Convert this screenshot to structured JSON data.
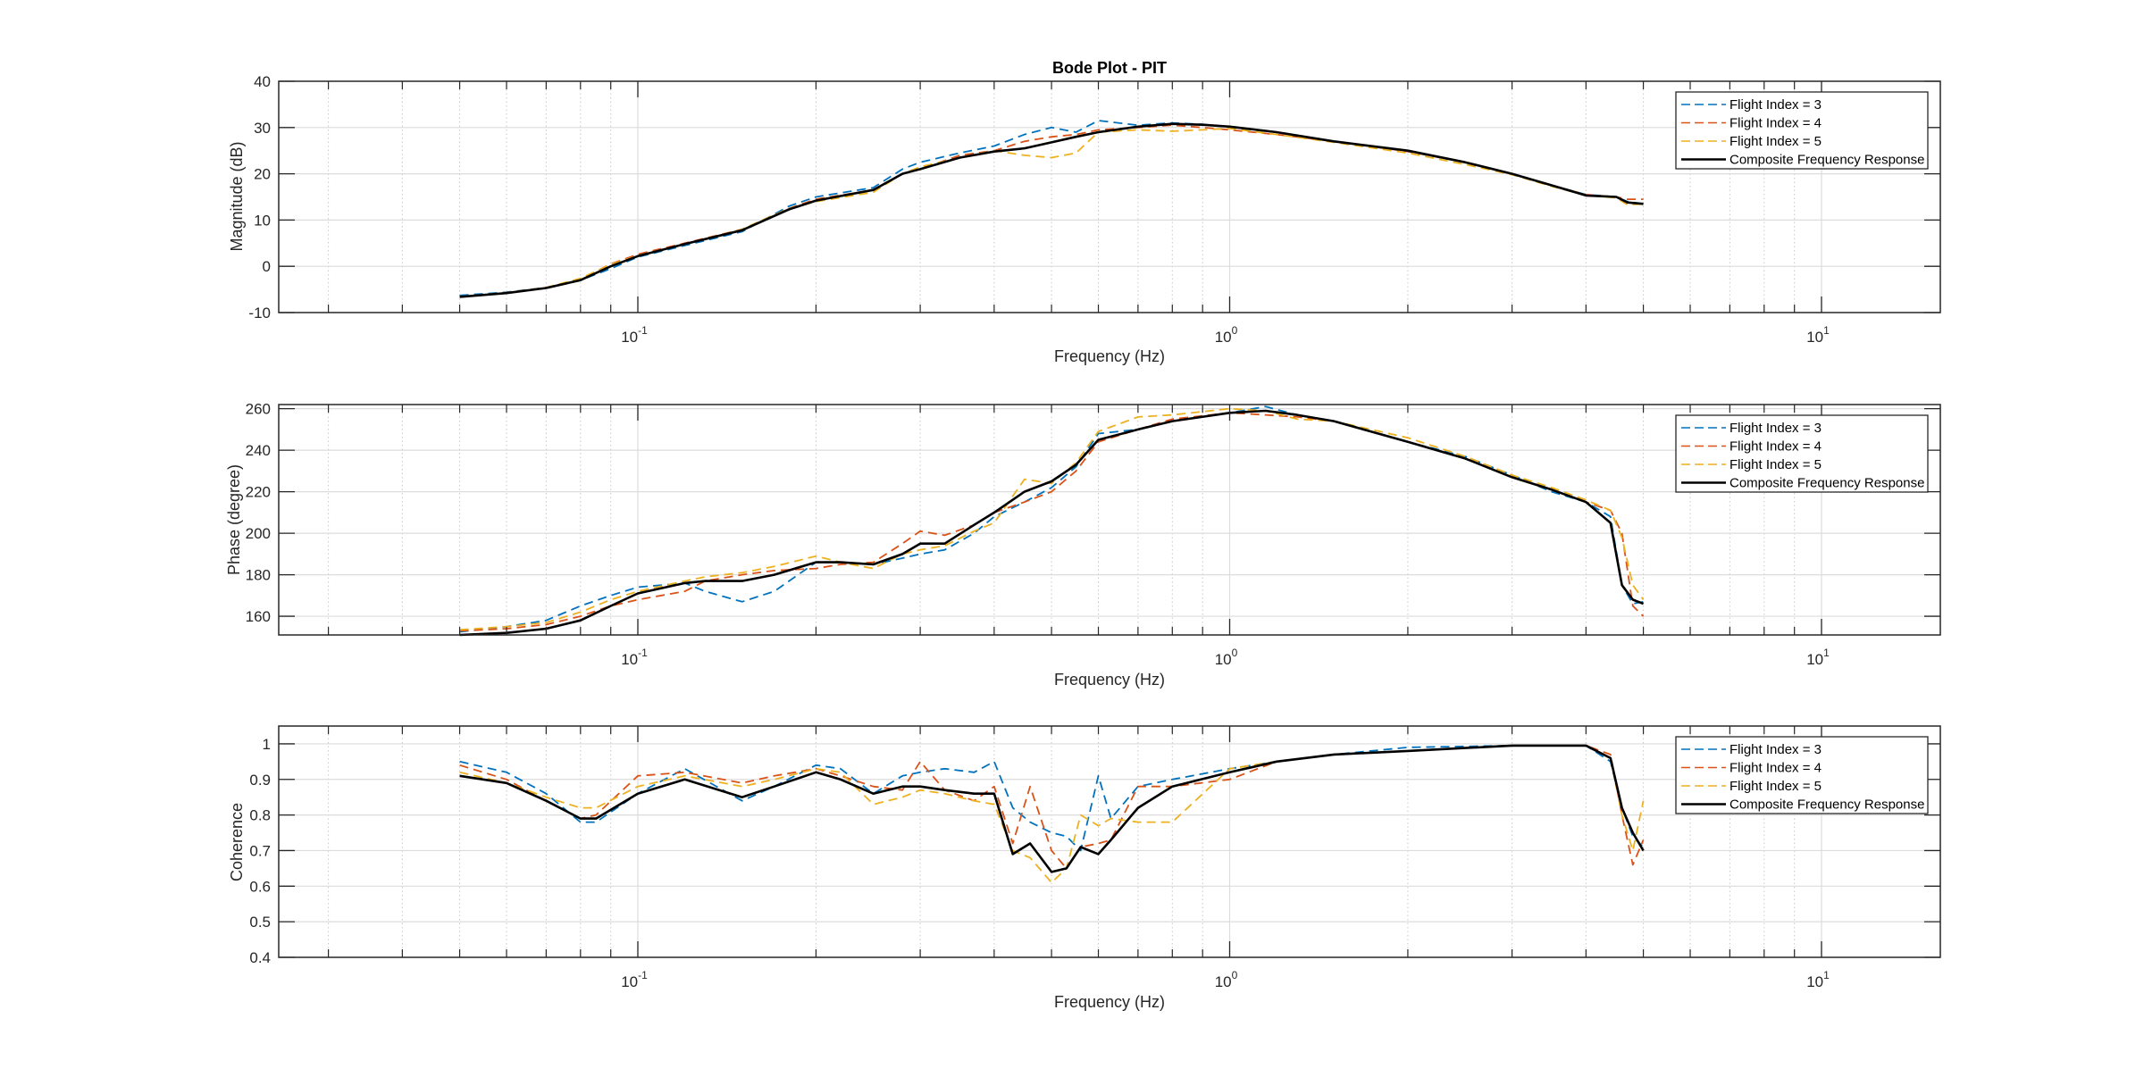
{
  "figure": {
    "title": "Bode Plot - PIT",
    "background": "#ffffff"
  },
  "colors": {
    "Flight Index = 3": "#0072BD",
    "Flight Index = 4": "#D95319",
    "Flight Index = 5": "#EDB120",
    "Composite Frequency Response": "#000000"
  },
  "chart_data": [
    {
      "type": "line",
      "title": "Bode Plot - PIT",
      "xlabel": "Frequency (Hz)",
      "ylabel": "Magnitude (dB)",
      "xscale": "log",
      "xlim": [
        0.0247,
        15.9
      ],
      "ylim": [
        -10,
        40
      ],
      "xticks": [
        {
          "value": 0.1,
          "base": "10",
          "exp": "-1"
        },
        {
          "value": 1,
          "base": "10",
          "exp": "0"
        },
        {
          "value": 10,
          "base": "10",
          "exp": "1"
        }
      ],
      "yticks": [
        -10,
        0,
        10,
        20,
        30,
        40
      ],
      "grid": true,
      "legend_position": "northeast",
      "x": [
        0.05,
        0.06,
        0.07,
        0.08,
        0.09,
        0.1,
        0.12,
        0.15,
        0.18,
        0.2,
        0.25,
        0.28,
        0.3,
        0.35,
        0.4,
        0.45,
        0.5,
        0.55,
        0.6,
        0.7,
        0.8,
        0.9,
        1.0,
        1.2,
        1.5,
        2.0,
        2.5,
        3.0,
        3.5,
        4.0,
        4.5,
        4.7,
        5.0
      ],
      "series": [
        {
          "name": "Flight Index = 3",
          "style": "dashed",
          "values": [
            -6.3,
            -5.6,
            -4.6,
            -3.0,
            -0.5,
            2.0,
            4.5,
            7.5,
            13.0,
            15.0,
            17.0,
            21.0,
            22.5,
            24.5,
            26.0,
            28.5,
            30.0,
            29.0,
            31.5,
            30.5,
            31.0,
            30.7,
            30.0,
            29.0,
            27.0,
            25.0,
            22.5,
            20.0,
            17.5,
            15.5,
            15.0,
            14.0,
            13.5
          ]
        },
        {
          "name": "Flight Index = 4",
          "style": "dashed",
          "values": [
            -6.6,
            -5.7,
            -4.6,
            -2.8,
            0.5,
            2.6,
            5.0,
            8.0,
            12.5,
            14.5,
            16.5,
            20.0,
            21.0,
            24.0,
            25.0,
            27.0,
            28.0,
            28.5,
            29.5,
            30.0,
            30.5,
            30.0,
            29.5,
            28.5,
            27.0,
            24.8,
            22.5,
            20.0,
            17.5,
            15.5,
            15.0,
            14.5,
            14.5
          ]
        },
        {
          "name": "Flight Index = 5",
          "style": "dashed",
          "values": [
            -6.6,
            -5.7,
            -4.6,
            -2.6,
            0.4,
            2.3,
            4.8,
            8.0,
            12.5,
            14.0,
            16.0,
            20.0,
            21.5,
            23.5,
            25.0,
            24.0,
            23.5,
            24.5,
            29.0,
            29.5,
            29.2,
            29.5,
            29.8,
            28.5,
            26.8,
            24.5,
            22.0,
            19.8,
            17.3,
            15.3,
            14.8,
            13.3,
            13.5
          ]
        },
        {
          "name": "Composite Frequency Response",
          "style": "solid",
          "values": [
            -6.6,
            -5.8,
            -4.7,
            -3.0,
            0.0,
            2.2,
            4.8,
            7.8,
            12.3,
            14.2,
            16.5,
            20.0,
            21.0,
            23.5,
            24.8,
            25.5,
            26.8,
            28.0,
            29.0,
            30.2,
            30.8,
            30.6,
            30.2,
            29.0,
            27.0,
            25.0,
            22.5,
            20.0,
            17.5,
            15.3,
            15.0,
            13.8,
            13.5
          ]
        }
      ]
    },
    {
      "type": "line",
      "title": "",
      "xlabel": "Frequency (Hz)",
      "ylabel": "Phase (degree)",
      "xscale": "log",
      "xlim": [
        0.0247,
        15.9
      ],
      "ylim": [
        151,
        262
      ],
      "xticks": [
        {
          "value": 0.1,
          "base": "10",
          "exp": "-1"
        },
        {
          "value": 1,
          "base": "10",
          "exp": "0"
        },
        {
          "value": 10,
          "base": "10",
          "exp": "1"
        }
      ],
      "yticks": [
        160,
        180,
        200,
        220,
        240,
        260
      ],
      "grid": true,
      "legend_position": "northeast",
      "x": [
        0.05,
        0.06,
        0.07,
        0.08,
        0.09,
        0.1,
        0.12,
        0.13,
        0.15,
        0.17,
        0.2,
        0.22,
        0.25,
        0.28,
        0.3,
        0.33,
        0.37,
        0.4,
        0.45,
        0.5,
        0.55,
        0.6,
        0.7,
        0.8,
        1.0,
        1.15,
        1.3,
        1.5,
        2.0,
        2.5,
        3.0,
        3.5,
        4.0,
        4.4,
        4.6,
        4.8,
        5.0
      ],
      "series": [
        {
          "name": "Flight Index = 3",
          "style": "dashed",
          "values": [
            152.5,
            155,
            158,
            165,
            170,
            174,
            176,
            172,
            167,
            172,
            186,
            186,
            185,
            188,
            190,
            192,
            200,
            208,
            215,
            222,
            232,
            248,
            250,
            254,
            258,
            261,
            257,
            254,
            244,
            237,
            228,
            220,
            215,
            208,
            175,
            166,
            167
          ]
        },
        {
          "name": "Flight Index = 4",
          "style": "dashed",
          "values": [
            153,
            154,
            156,
            160,
            165,
            168,
            172,
            177,
            180,
            182,
            183,
            185,
            186,
            195,
            201,
            199,
            204,
            210,
            215,
            220,
            230,
            244,
            250,
            255,
            258,
            257,
            256,
            254,
            244,
            236,
            227,
            221,
            215,
            211,
            200,
            165,
            160
          ]
        },
        {
          "name": "Flight Index = 5",
          "style": "dashed",
          "values": [
            153.5,
            155,
            157,
            162,
            168,
            172,
            177,
            179,
            181,
            184,
            189,
            186,
            183,
            190,
            192,
            194,
            201,
            205,
            226,
            224,
            234,
            249,
            256,
            257,
            260,
            259,
            255,
            254,
            246,
            237,
            228,
            222,
            216,
            211,
            198,
            175,
            168
          ]
        },
        {
          "name": "Composite Frequency Response",
          "style": "solid",
          "values": [
            151,
            152,
            154,
            158,
            165,
            171,
            176,
            177,
            177,
            180,
            186,
            186,
            185,
            190,
            195,
            195,
            204,
            210,
            220,
            225,
            233,
            245,
            250,
            254,
            258,
            259,
            257,
            254,
            244,
            236,
            227,
            221,
            215,
            205,
            175,
            168,
            166
          ]
        }
      ]
    },
    {
      "type": "line",
      "title": "",
      "xlabel": "Frequency (Hz)",
      "ylabel": "Coherence",
      "xscale": "log",
      "xlim": [
        0.0247,
        15.9
      ],
      "ylim": [
        0.4,
        1.05
      ],
      "xticks": [
        {
          "value": 0.1,
          "base": "10",
          "exp": "-1"
        },
        {
          "value": 1,
          "base": "10",
          "exp": "0"
        },
        {
          "value": 10,
          "base": "10",
          "exp": "1"
        }
      ],
      "yticks": [
        0.4,
        0.5,
        0.6,
        0.7,
        0.8,
        0.9,
        1
      ],
      "grid": true,
      "legend_position": "northeast",
      "x": [
        0.05,
        0.06,
        0.07,
        0.08,
        0.085,
        0.1,
        0.12,
        0.15,
        0.17,
        0.2,
        0.22,
        0.25,
        0.28,
        0.3,
        0.33,
        0.37,
        0.4,
        0.43,
        0.46,
        0.5,
        0.53,
        0.56,
        0.6,
        0.63,
        0.7,
        0.8,
        1.0,
        1.2,
        1.5,
        2.0,
        3.0,
        4.0,
        4.4,
        4.6,
        4.8,
        5.0
      ],
      "series": [
        {
          "name": "Flight Index = 3",
          "style": "dashed",
          "values": [
            0.95,
            0.92,
            0.86,
            0.78,
            0.78,
            0.86,
            0.93,
            0.84,
            0.88,
            0.94,
            0.93,
            0.86,
            0.91,
            0.92,
            0.93,
            0.92,
            0.95,
            0.82,
            0.78,
            0.75,
            0.74,
            0.7,
            0.91,
            0.79,
            0.88,
            0.9,
            0.93,
            0.95,
            0.97,
            0.99,
            0.995,
            0.995,
            0.95,
            0.82,
            0.74,
            0.71
          ]
        },
        {
          "name": "Flight Index = 4",
          "style": "dashed",
          "values": [
            0.94,
            0.9,
            0.84,
            0.79,
            0.8,
            0.91,
            0.92,
            0.89,
            0.91,
            0.93,
            0.91,
            0.88,
            0.87,
            0.95,
            0.87,
            0.84,
            0.88,
            0.72,
            0.88,
            0.7,
            0.65,
            0.71,
            0.72,
            0.73,
            0.88,
            0.88,
            0.9,
            0.95,
            0.97,
            0.98,
            0.995,
            0.995,
            0.97,
            0.8,
            0.66,
            0.73
          ]
        },
        {
          "name": "Flight Index = 5",
          "style": "dashed",
          "values": [
            0.92,
            0.89,
            0.85,
            0.82,
            0.82,
            0.88,
            0.91,
            0.88,
            0.9,
            0.93,
            0.92,
            0.83,
            0.85,
            0.87,
            0.86,
            0.84,
            0.83,
            0.7,
            0.68,
            0.61,
            0.65,
            0.8,
            0.77,
            0.79,
            0.78,
            0.78,
            0.93,
            0.95,
            0.97,
            0.98,
            0.995,
            0.995,
            0.96,
            0.8,
            0.7,
            0.84
          ]
        },
        {
          "name": "Composite Frequency Response",
          "style": "solid",
          "values": [
            0.91,
            0.89,
            0.84,
            0.79,
            0.79,
            0.86,
            0.9,
            0.85,
            0.88,
            0.92,
            0.9,
            0.86,
            0.88,
            0.88,
            0.87,
            0.86,
            0.86,
            0.69,
            0.72,
            0.64,
            0.65,
            0.71,
            0.69,
            0.73,
            0.82,
            0.88,
            0.92,
            0.95,
            0.97,
            0.98,
            0.995,
            0.995,
            0.96,
            0.82,
            0.75,
            0.7
          ]
        }
      ]
    }
  ],
  "legend": {
    "items": [
      {
        "label": "Flight Index = 3",
        "style": "dashed"
      },
      {
        "label": "Flight Index = 4",
        "style": "dashed"
      },
      {
        "label": "Flight Index = 5",
        "style": "dashed"
      },
      {
        "label": "Composite Frequency Response",
        "style": "solid"
      }
    ]
  }
}
